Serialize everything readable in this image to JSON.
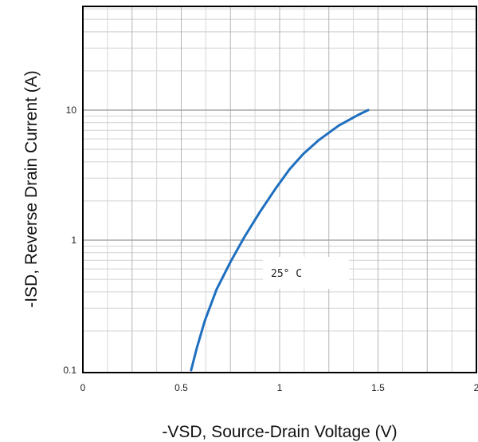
{
  "chart_data": {
    "type": "line",
    "title": "",
    "xlabel": "-VSD, Source-Drain Voltage (V)",
    "ylabel": "-ISD, Reverse Drain Current (A)",
    "xlim": [
      0,
      2
    ],
    "ylim": [
      0.1,
      50
    ],
    "yscale": "log",
    "grid": true,
    "x_ticks": [
      0,
      0.5,
      1,
      1.5,
      2
    ],
    "x_tick_labels": [
      "0",
      "0.5",
      "1",
      "1.5",
      "2"
    ],
    "y_ticks": [
      0.1,
      1,
      10
    ],
    "y_tick_labels": [
      "0.1",
      "1",
      "10"
    ],
    "annotation": "25° C",
    "series": [
      {
        "color": "#1f6fbf",
        "x": [
          0.55,
          0.58,
          0.62,
          0.68,
          0.75,
          0.82,
          0.9,
          0.98,
          1.05,
          1.12,
          1.2,
          1.3,
          1.4,
          1.45
        ],
        "y": [
          0.1,
          0.15,
          0.24,
          0.42,
          0.68,
          1.05,
          1.65,
          2.5,
          3.5,
          4.6,
          5.9,
          7.6,
          9.2,
          10
        ]
      }
    ]
  }
}
